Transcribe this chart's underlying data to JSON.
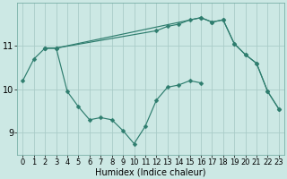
{
  "xlabel": "Humidex (Indice chaleur)",
  "bg_color": "#cce8e4",
  "grid_color": "#aaccc8",
  "line_color": "#2e7d6e",
  "xlim": [
    -0.5,
    23.5
  ],
  "ylim": [
    8.5,
    12.0
  ],
  "yticks": [
    9,
    10,
    11
  ],
  "xticks": [
    0,
    1,
    2,
    3,
    4,
    5,
    6,
    7,
    8,
    9,
    10,
    11,
    12,
    13,
    14,
    15,
    16,
    17,
    18,
    19,
    20,
    21,
    22,
    23
  ],
  "series1_x": [
    0,
    1,
    2,
    3,
    4,
    5,
    6,
    7,
    8,
    9,
    10,
    11,
    12,
    13,
    14,
    15,
    16
  ],
  "series1_y": [
    10.2,
    10.7,
    10.95,
    10.95,
    9.95,
    9.6,
    9.3,
    9.35,
    9.3,
    9.05,
    8.75,
    9.15,
    9.75,
    10.05,
    10.1,
    10.2,
    10.15
  ],
  "series2_x": [
    2,
    3,
    12,
    13,
    14,
    15,
    16,
    17,
    18,
    19,
    20,
    21,
    22,
    23
  ],
  "series2_y": [
    10.95,
    10.95,
    11.35,
    11.45,
    11.5,
    11.6,
    11.65,
    11.55,
    11.6,
    11.05,
    10.8,
    10.6,
    9.95,
    9.55
  ],
  "series3_x": [
    2,
    3,
    16,
    17,
    18,
    19,
    20,
    21,
    22,
    23
  ],
  "series3_y": [
    10.95,
    10.95,
    11.65,
    11.55,
    11.6,
    11.05,
    10.8,
    10.6,
    9.95,
    9.55
  ],
  "marker_size": 2.5,
  "linewidth": 0.85,
  "tick_fontsize": 6,
  "xlabel_fontsize": 7
}
